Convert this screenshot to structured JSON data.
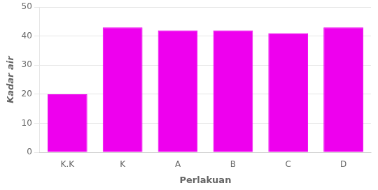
{
  "chart_data": {
    "type": "bar",
    "categories": [
      "K.K",
      "K",
      "A",
      "B",
      "C",
      "D"
    ],
    "values": [
      20.0,
      43.0,
      42.0,
      42.0,
      41.0,
      43.0
    ],
    "color": "#EE00EE",
    "xlabel": "Perlakuan",
    "ylabel": "Kadar air",
    "ylim": [
      0,
      50
    ],
    "yticks": [
      0,
      10,
      20,
      30,
      40,
      50
    ],
    "grid": true
  }
}
